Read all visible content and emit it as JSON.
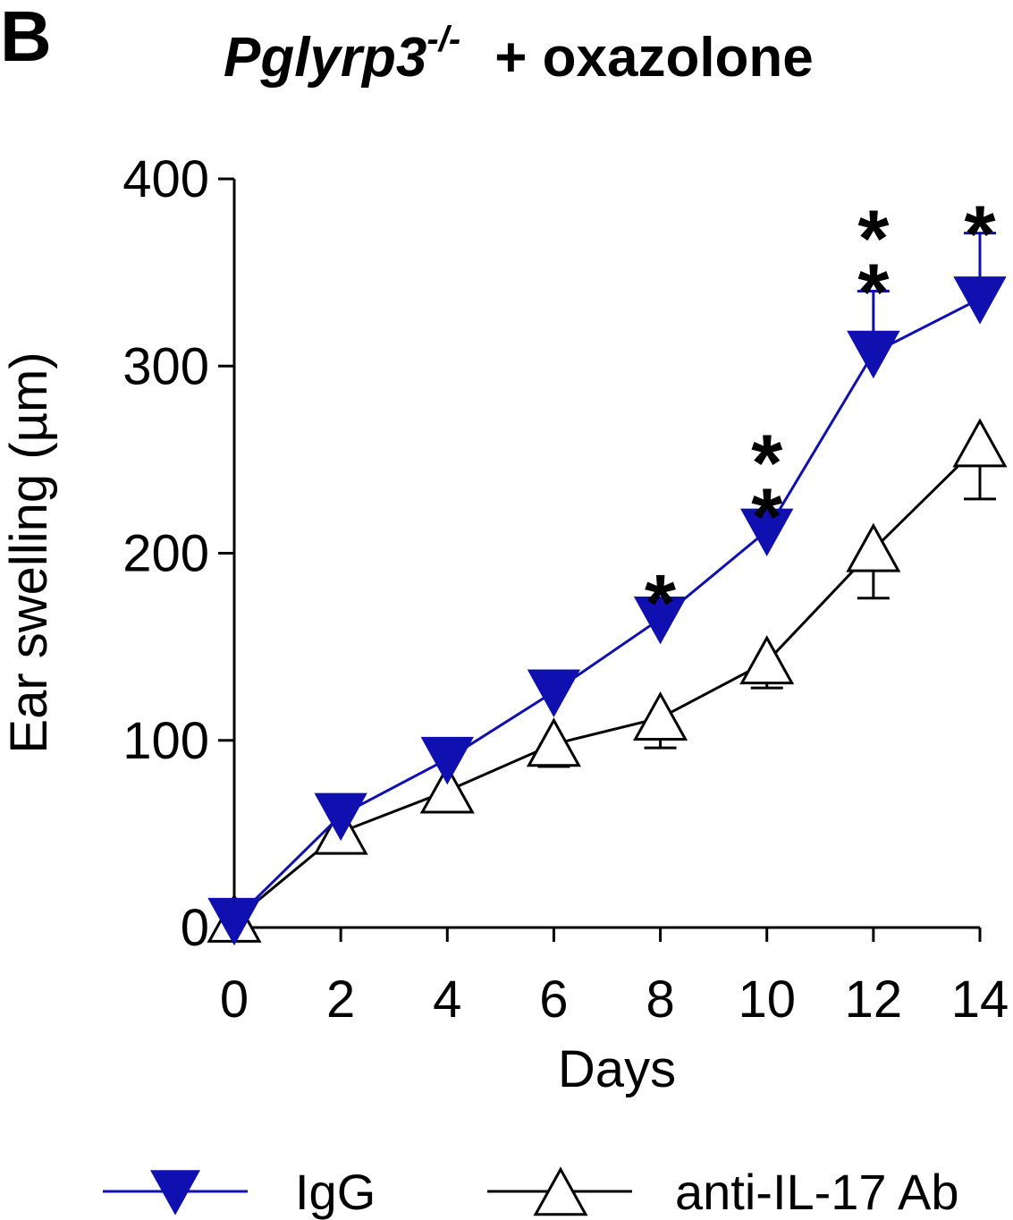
{
  "panel_label": "B",
  "title": {
    "gene": "Pglyrp3",
    "superscript": "-/-",
    "rest": "+  oxazolone"
  },
  "colors": {
    "igg": "#1010b0",
    "anti": "#000000"
  },
  "chart_data": {
    "type": "line",
    "xlabel": "Days",
    "ylabel": "Ear swelling (µm)",
    "x": [
      0,
      2,
      4,
      6,
      8,
      10,
      12,
      14
    ],
    "xticks": [
      "0",
      "2",
      "4",
      "6",
      "8",
      "10",
      "12",
      "14"
    ],
    "yticks": [
      "0",
      "100",
      "200",
      "300",
      "400"
    ],
    "xlim": [
      0,
      14
    ],
    "ylim": [
      0,
      400
    ],
    "grid": false,
    "legend_position": "bottom",
    "series": [
      {
        "name": "IgG",
        "marker": "filled-down-triangle",
        "color": "#1010b0",
        "values": [
          4,
          60,
          90,
          126,
          165,
          212,
          307,
          336
        ],
        "err_up": [
          0,
          0,
          0,
          4,
          9,
          8,
          33,
          35
        ],
        "err_down": [
          0,
          0,
          0,
          0,
          0,
          0,
          0,
          0
        ]
      },
      {
        "name": "anti-IL-17 Ab",
        "marker": "open-up-triangle",
        "color": "#000000",
        "values": [
          4,
          51,
          73,
          98,
          112,
          142,
          202,
          258
        ],
        "err_up": [
          0,
          0,
          0,
          0,
          0,
          0,
          0,
          0
        ],
        "err_down": [
          0,
          0,
          0,
          12,
          16,
          14,
          26,
          29
        ]
      }
    ],
    "significance": [
      {
        "x": 8,
        "label": "*",
        "count": 1
      },
      {
        "x": 10,
        "label": "*",
        "count": 2
      },
      {
        "x": 12,
        "label": "*",
        "count": 2
      },
      {
        "x": 14,
        "label": "*",
        "count": 1
      }
    ]
  }
}
